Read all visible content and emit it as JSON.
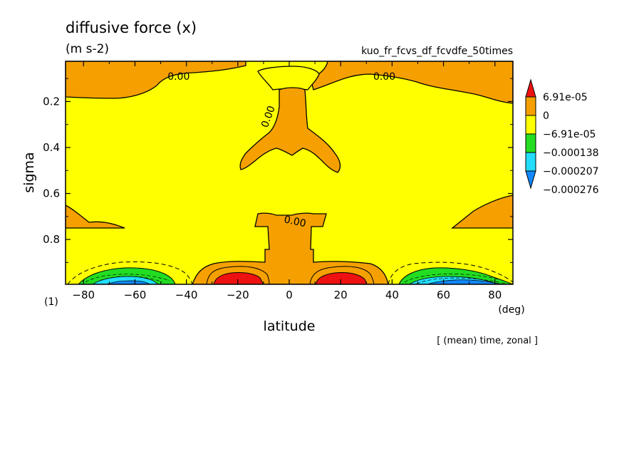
{
  "title": "diffusive force (x)",
  "units": "(m s-2)",
  "run_name": "kuo_fr_fcvs_df_fcvdfe_50times",
  "time_note": "[ (mean) time, zonal ]",
  "page_number": "(1)",
  "colors": {
    "red": "#ee1111",
    "orange": "#f5a000",
    "yellow": "#ffff00",
    "green": "#22dd22",
    "cyan": "#22ddff",
    "blue": "#1188ff"
  },
  "chart_data": {
    "type": "heatmap",
    "title": "diffusive force (x)",
    "xlabel": "latitude",
    "xunit": "(deg)",
    "ylabel": "sigma",
    "xlim": [
      -87,
      87
    ],
    "ylim": [
      0.995,
      0.025
    ],
    "xticks": [
      -80,
      -60,
      -40,
      -20,
      0,
      20,
      40,
      60,
      80
    ],
    "xtick_labels": [
      "−80",
      "−60",
      "−40",
      "−20",
      "0",
      "20",
      "40",
      "60",
      "80"
    ],
    "yticks": [
      0.2,
      0.4,
      0.6,
      0.8
    ],
    "ytick_labels": [
      "0.2",
      "0.4",
      "0.6",
      "0.8"
    ],
    "contour_labels": [
      {
        "text": "0.00",
        "x": -43,
        "y": 0.09
      },
      {
        "text": "0.00",
        "x": 37,
        "y": 0.09
      },
      {
        "text": "0.00",
        "x": -7,
        "y": 0.255
      },
      {
        "text": "0.00",
        "x": 2,
        "y": 0.72
      }
    ],
    "colorbar": {
      "levels": [
        "6.91e-05",
        "0",
        "−6.91e-05",
        "−0.000138",
        "−0.000207",
        "−0.000276"
      ],
      "level_values": [
        6.91e-05,
        0,
        -6.91e-05,
        -0.000138,
        -0.000207,
        -0.000276
      ],
      "bins": [
        {
          "color": "#ee1111",
          "range": "> 6.91e-05"
        },
        {
          "color": "#f5a000",
          "range": "0 to 6.91e-05"
        },
        {
          "color": "#ffff00",
          "range": "-6.91e-05 to 0"
        },
        {
          "color": "#22dd22",
          "range": "-0.000138 to -6.91e-05"
        },
        {
          "color": "#22ddff",
          "range": "-0.000207 to -0.000138"
        },
        {
          "color": "#1188ff",
          "range": "< -0.000207"
        }
      ]
    }
  }
}
